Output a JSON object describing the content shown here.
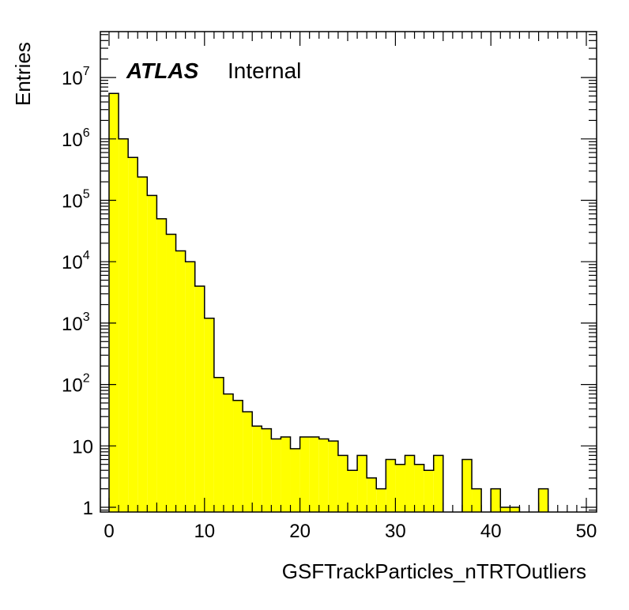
{
  "chart_data": {
    "type": "bar",
    "style": "histogram-step",
    "xlabel": "GSFTrackParticles_nTRTOutliers",
    "ylabel": "Entries",
    "log_y": true,
    "xlim": [
      0,
      50
    ],
    "ylim": [
      0.8,
      60000000
    ],
    "x_ticks": [
      0,
      10,
      20,
      30,
      40,
      50
    ],
    "y_ticks": [
      {
        "value": 1,
        "base": "1",
        "exp": ""
      },
      {
        "value": 10,
        "base": "10",
        "exp": ""
      },
      {
        "value": 100,
        "base": "10",
        "exp": "2"
      },
      {
        "value": 1000,
        "base": "10",
        "exp": "3"
      },
      {
        "value": 10000,
        "base": "10",
        "exp": "4"
      },
      {
        "value": 100000,
        "base": "10",
        "exp": "5"
      },
      {
        "value": 1000000,
        "base": "10",
        "exp": "6"
      },
      {
        "value": 10000000,
        "base": "10",
        "exp": "7"
      }
    ],
    "bin_width": 1,
    "bin_low_edges": [
      0,
      1,
      2,
      3,
      4,
      5,
      6,
      7,
      8,
      9,
      10,
      11,
      12,
      13,
      14,
      15,
      16,
      17,
      18,
      19,
      20,
      21,
      22,
      23,
      24,
      25,
      26,
      27,
      28,
      29,
      30,
      31,
      32,
      33,
      34,
      35,
      36,
      37,
      38,
      39,
      40,
      41,
      42,
      43,
      44,
      45,
      46,
      47,
      48,
      49
    ],
    "values": [
      5500000,
      1000000,
      500000,
      240000,
      120000,
      50000,
      28000,
      15000,
      10000,
      4000,
      1200,
      130,
      70,
      55,
      36,
      21,
      19,
      13,
      14,
      9,
      14,
      14,
      13,
      12,
      7,
      4,
      7,
      3,
      2,
      6,
      5,
      7,
      5,
      4,
      7,
      0,
      0,
      6,
      2,
      0,
      2,
      1,
      1,
      0,
      0,
      2,
      0,
      0,
      0,
      0
    ],
    "fill_color": "#ffff00",
    "line_color": "#000000",
    "annotations": {
      "label_bold": "ATLAS",
      "label_normal": "Internal"
    }
  }
}
